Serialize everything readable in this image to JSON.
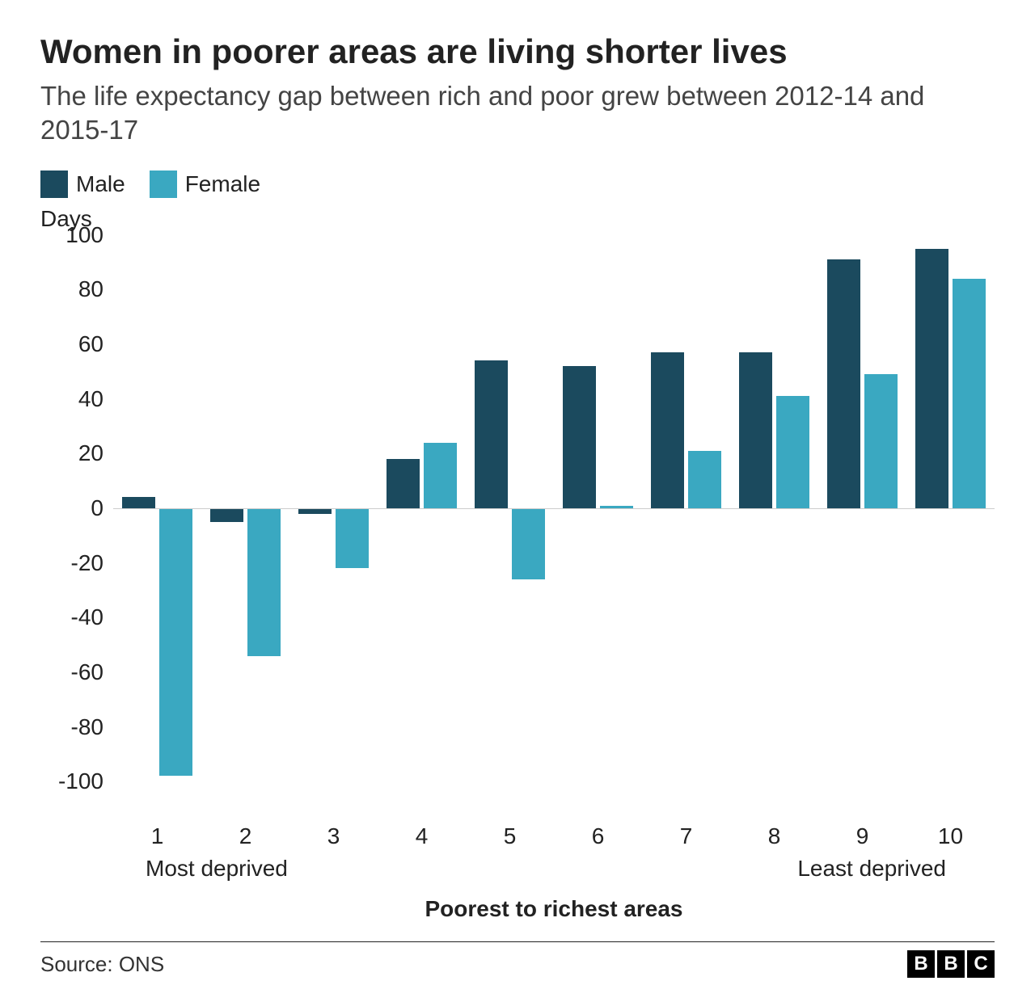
{
  "title": "Women in poorer areas are living shorter lives",
  "subtitle": "The life expectancy gap between rich and poor grew between 2012-14 and 2015-17",
  "legend": {
    "series": [
      {
        "label": "Male",
        "color": "#1b4a5e"
      },
      {
        "label": "Female",
        "color": "#3aa8c1"
      }
    ]
  },
  "chart": {
    "type": "bar",
    "y_title": "Days",
    "ylim": [
      -110,
      100
    ],
    "y_ticks": [
      -100,
      -80,
      -60,
      -40,
      -20,
      0,
      20,
      40,
      60,
      80,
      100
    ],
    "zero_line_color": "#cccccc",
    "grid_color": "#eeeeee",
    "background_color": "#ffffff",
    "categories": [
      "1",
      "2",
      "3",
      "4",
      "5",
      "6",
      "7",
      "8",
      "9",
      "10"
    ],
    "series": [
      {
        "name": "Male",
        "color": "#1b4a5e",
        "values": [
          4,
          -5,
          -2,
          18,
          54,
          52,
          57,
          57,
          91,
          95
        ]
      },
      {
        "name": "Female",
        "color": "#3aa8c1",
        "values": [
          -98,
          -54,
          -22,
          24,
          -26,
          1,
          21,
          41,
          49,
          84
        ]
      }
    ],
    "x_left_annotation": "Most deprived",
    "x_right_annotation": "Least deprived",
    "x_title": "Poorest to richest areas",
    "bar_width_pct": 38,
    "title_fontsize": 42,
    "subtitle_fontsize": 33,
    "tick_fontsize": 28
  },
  "footer": {
    "source": "Source: ONS",
    "brand_letters": [
      "B",
      "B",
      "C"
    ]
  }
}
